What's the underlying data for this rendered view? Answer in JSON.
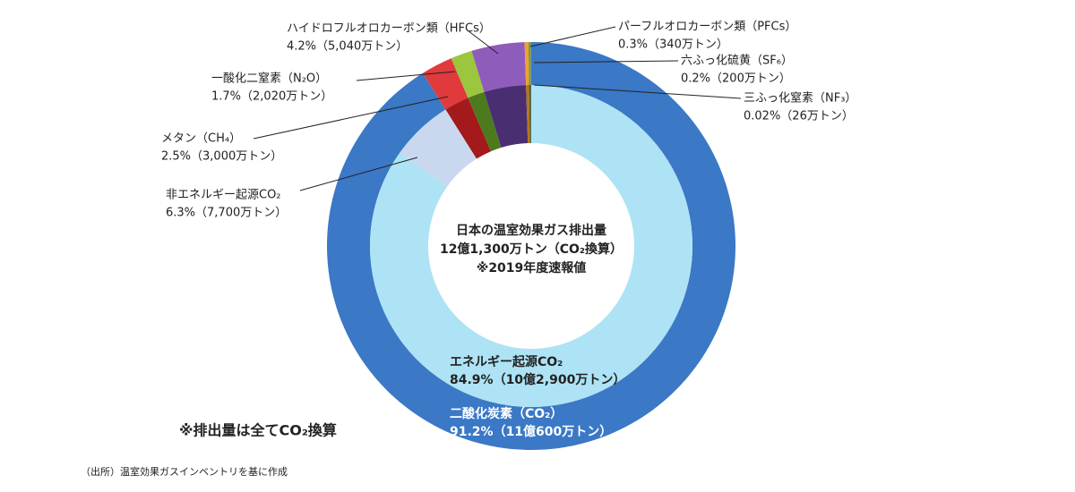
{
  "chart_data": {
    "type": "donut",
    "center_text": [
      "日本の温室効果ガス排出量",
      "12億1,300万トン（CO₂換算）",
      "※2019年度速報値"
    ],
    "note": "※排出量は全てCO₂換算",
    "source": "（出所）温室効果ガスインベントリを基に作成",
    "outer": {
      "labels": [
        "二酸化炭素（CO₂）",
        "メタン（CH₄）",
        "一酸化二窒素（N₂O）",
        "ハイドロフルオロカーボン類（HFCs）",
        "パーフルオロカーボン類（PFCs）",
        "六ふっ化硫黄（SF₆）",
        "三ふっ化窒素（NF₃）"
      ],
      "values": [
        91.2,
        2.5,
        1.7,
        4.2,
        0.3,
        0.2,
        0.02
      ],
      "value_labels": [
        "91.2%（11億600万トン）",
        "2.5%（3,000万トン）",
        "1.7%（2,020万トン）",
        "4.2%（5,040万トン）",
        "0.3%（340万トン）",
        "0.2%（200万トン）",
        "0.02%（26万トン）"
      ],
      "colors": [
        "#3b78c6",
        "#e03a3c",
        "#9cc63e",
        "#8e5cba",
        "#f0a032",
        "#7a9a40",
        "#5a7ec0"
      ],
      "inner_colors": [
        null,
        "#a3191c",
        "#4d7a1d",
        "#4a2e72",
        "#b87420",
        "#4c6424",
        "#33508a"
      ]
    },
    "inner": {
      "labels": [
        "エネルギー起源CO₂",
        "非エネルギー起源CO₂"
      ],
      "values": [
        84.9,
        6.3
      ],
      "value_labels": [
        "84.9%（10億2,900万トン）",
        "6.3%（7,700万トン）"
      ],
      "colors": [
        "#ade3f4",
        "#c9d8ee"
      ]
    }
  }
}
